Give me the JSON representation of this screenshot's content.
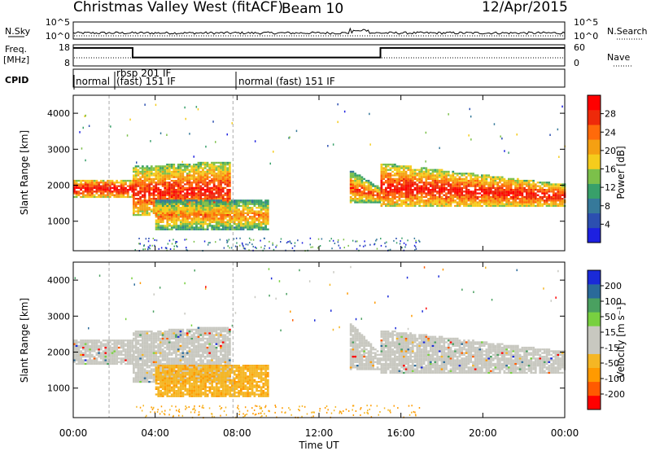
{
  "header": {
    "station": "Christmas Valley West (fitACF)",
    "beam": "Beam 10",
    "date": "12/Apr/2015"
  },
  "colors": {
    "power": [
      "#1d20e0",
      "#2c4fb0",
      "#36799a",
      "#38a06a",
      "#7cc04a",
      "#f5cc1c",
      "#f5a012",
      "#ff6a0a",
      "#ee2a0a",
      "#ff0000"
    ],
    "velocity": [
      "#ff0000",
      "#ff5a00",
      "#ff9a00",
      "#f5b624",
      "#c8c8c0",
      "#c8c8c0",
      "#78d040",
      "#4aa060",
      "#2a6a9a",
      "#1a2ad8"
    ],
    "gray": "#c8c8c0"
  },
  "chart_data": [
    {
      "type": "line",
      "panel": "noise",
      "left_label": "N.Sky",
      "right_label": "N.Search",
      "y_ticks_left": [
        "10^5",
        "10^0"
      ],
      "y_ticks_right": [
        "10^5",
        "10^0"
      ],
      "x_range_hours": [
        0,
        24
      ]
    },
    {
      "type": "line",
      "panel": "freq",
      "left_label": "Freq.",
      "left_unit": "[MHz]",
      "right_label": "Nave",
      "y_ticks_left": [
        "18",
        "8"
      ],
      "y_ticks_right": [
        "60",
        "0"
      ],
      "series": [
        {
          "name": "Freq.",
          "x": [
            0,
            2.9,
            2.9,
            15,
            15,
            24
          ],
          "y": [
            16.5,
            16.5,
            12.0,
            12.0,
            16.5,
            16.5
          ]
        }
      ]
    },
    {
      "type": "table",
      "panel": "cpid",
      "left_label": "CPID",
      "segments": [
        {
          "start_hour": 0,
          "text": "normal"
        },
        {
          "start_hour": 1.75,
          "text": "rbsp 201 IF"
        },
        {
          "start_hour": 1.75,
          "text": "(fast) 151 IF"
        },
        {
          "start_hour": 7.8,
          "text": "normal (fast) 151 IF"
        }
      ]
    },
    {
      "type": "heatmap",
      "panel": "power",
      "ylabel": "Slant Range [km]",
      "ylim": [
        180,
        4500
      ],
      "y_ticks": [
        "1000",
        "2000",
        "3000",
        "4000"
      ],
      "colorbar_label": "Power [dB]",
      "colorbar_ticks": [
        "4",
        "8",
        "12",
        "16",
        "20",
        "24",
        "28"
      ],
      "bands": [
        {
          "t0": 0,
          "t1": 2.9,
          "r0": 1650,
          "r1": 2150,
          "r1b": 2150,
          "v": 0.85
        },
        {
          "t0": 2.9,
          "t1": 7.6,
          "r0": 1150,
          "r1": 2500,
          "r1b": 2650,
          "v": 0.75
        },
        {
          "t0": 4.0,
          "t1": 9.5,
          "r0": 750,
          "r1": 1600,
          "r1b": 1600,
          "v": 0.45
        },
        {
          "t0": 13.5,
          "t1": 15.0,
          "r0": 1500,
          "r1": 2400,
          "r1b": 1900,
          "v": 0.6
        },
        {
          "t0": 15.0,
          "t1": 24,
          "r0": 1400,
          "r1": 2600,
          "r1b": 2000,
          "v": 0.8
        }
      ]
    },
    {
      "type": "heatmap",
      "panel": "velocity",
      "ylabel": "Slant Range [km]",
      "xlabel": "Time UT",
      "ylim": [
        180,
        4500
      ],
      "y_ticks": [
        "1000",
        "2000",
        "3000",
        "4000"
      ],
      "x_ticks": [
        "00:00",
        "04:00",
        "08:00",
        "12:00",
        "16:00",
        "20:00",
        "00:00"
      ],
      "colorbar_label": "Velocity [m s⁻¹]",
      "colorbar_ticks": [
        "200",
        "100",
        "50",
        "15",
        "-15",
        "-50",
        "-100",
        "-200"
      ],
      "bands": [
        {
          "t0": 0,
          "t1": 2.9,
          "r0": 1650,
          "r1": 2350,
          "r1b": 2300,
          "v": -5
        },
        {
          "t0": 2.9,
          "t1": 7.6,
          "r0": 1150,
          "r1": 2550,
          "r1b": 2700,
          "v": -5
        },
        {
          "t0": 4.0,
          "t1": 9.5,
          "r0": 750,
          "r1": 1600,
          "r1b": 1650,
          "v": -60
        },
        {
          "t0": 13.5,
          "t1": 15.0,
          "r0": 1500,
          "r1": 2800,
          "r1b": 1900,
          "v": -5
        },
        {
          "t0": 15.0,
          "t1": 24,
          "r0": 1400,
          "r1": 2600,
          "r1b": 2000,
          "v": -5
        }
      ]
    }
  ]
}
